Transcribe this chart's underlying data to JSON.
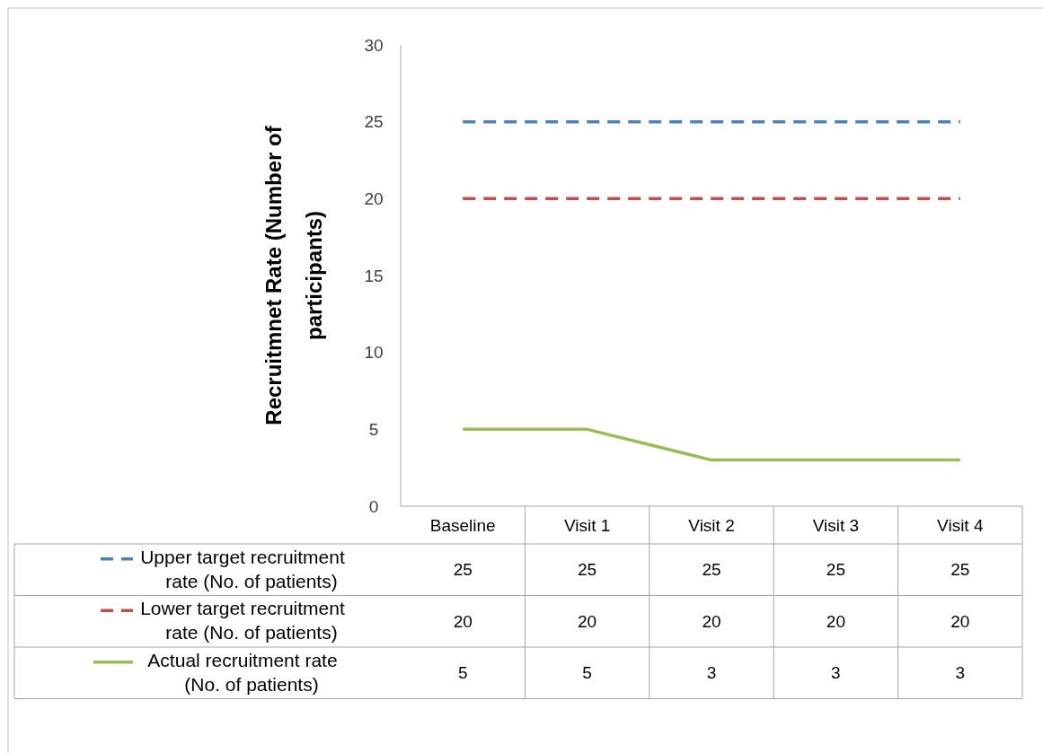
{
  "chart_data": {
    "type": "line",
    "ylabel": "Recruitmnet Rate   (Number of participants)",
    "categories": [
      "Baseline",
      "Visit 1",
      "Visit 2",
      "Visit 3",
      "Visit 4"
    ],
    "series": [
      {
        "name": "Upper target recruitment rate (No. of patients)",
        "color": "#4f81bd",
        "line_style": "dashed",
        "values": [
          25,
          25,
          25,
          25,
          25
        ]
      },
      {
        "name": "Lower target recruitment rate (No. of patients)",
        "color": "#c0504d",
        "line_style": "dashed",
        "values": [
          20,
          20,
          20,
          20,
          20
        ]
      },
      {
        "name": "Actual recruitment rate (No. of patients)",
        "color": "#9bbb59",
        "line_style": "solid",
        "values": [
          5,
          5,
          3,
          3,
          3
        ]
      }
    ],
    "ylim": [
      0,
      30
    ],
    "yticks": [
      0,
      5,
      10,
      15,
      20,
      25,
      30
    ],
    "grid": false,
    "legend": "bottom",
    "data_labels": true,
    "marker": "none"
  }
}
